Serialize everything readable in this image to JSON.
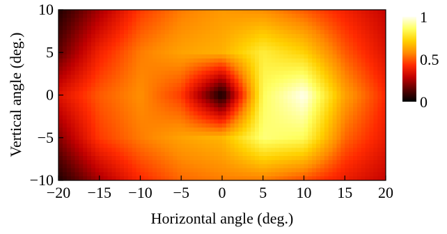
{
  "chart_data": {
    "type": "heatmap",
    "title": "",
    "xlabel": "Horizontal angle (deg.)",
    "ylabel": "Vertical angle (deg.)",
    "xlim": [
      -20,
      20
    ],
    "ylim": [
      -10,
      10
    ],
    "x_ticks": [
      -20,
      -15,
      -10,
      -5,
      0,
      5,
      10,
      15,
      20
    ],
    "y_ticks": [
      -10,
      -5,
      0,
      5,
      10
    ],
    "x_tick_labels": [
      "−20",
      "−15",
      "−10",
      "−5",
      "0",
      "5",
      "10",
      "15",
      "20"
    ],
    "y_tick_labels": [
      "−10",
      "−5",
      "0",
      "5",
      "10"
    ],
    "colorbar": {
      "range": [
        0,
        1
      ],
      "ticks": [
        0,
        0.5,
        1
      ],
      "tick_labels": [
        "0",
        "0.5",
        "1"
      ],
      "colormap": "hot",
      "stops": [
        "#000000",
        "#5a0000",
        "#c00000",
        "#ff2a00",
        "#ff8a00",
        "#ffd000",
        "#ffff60",
        "#fffff0"
      ]
    },
    "grid": false,
    "x": [
      -20,
      -15,
      -10,
      -5,
      0,
      5,
      10,
      15,
      20
    ],
    "y": [
      10,
      5,
      0,
      -5,
      -10
    ],
    "z": [
      [
        0.05,
        0.25,
        0.45,
        0.55,
        0.6,
        0.58,
        0.5,
        0.4,
        0.3
      ],
      [
        0.15,
        0.4,
        0.55,
        0.62,
        0.65,
        0.8,
        0.72,
        0.5,
        0.35
      ],
      [
        0.35,
        0.5,
        0.58,
        0.45,
        0.02,
        0.85,
        1.0,
        0.62,
        0.42
      ],
      [
        0.2,
        0.45,
        0.55,
        0.62,
        0.66,
        0.88,
        0.85,
        0.52,
        0.38
      ],
      [
        0.05,
        0.25,
        0.42,
        0.52,
        0.55,
        0.55,
        0.48,
        0.38,
        0.3
      ]
    ]
  }
}
